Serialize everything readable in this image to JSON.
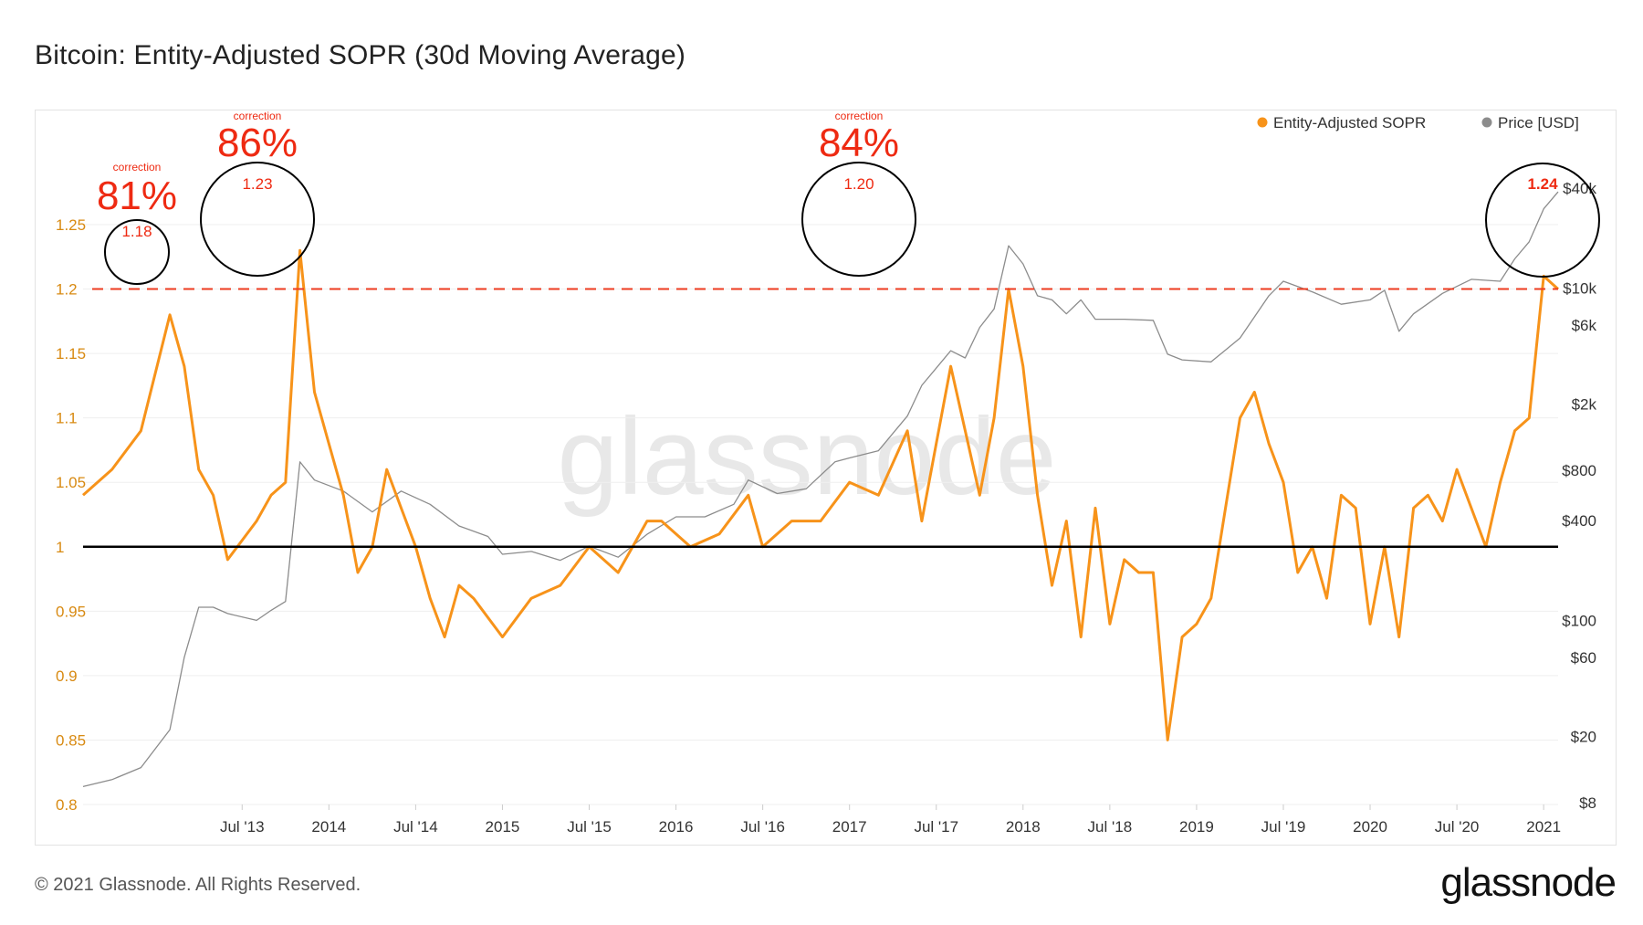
{
  "title": "Bitcoin: Entity-Adjusted SOPR (30d Moving Average)",
  "footer": "© 2021 Glassnode. All Rights Reserved.",
  "brand": "glassnode",
  "watermark": "glassnode",
  "colors": {
    "sopr": "#f7931a",
    "price": "#8c8c8c",
    "threshold": "#ee3b1f",
    "baseline": "#000000",
    "annotation": "#ee2a12"
  },
  "chart_data": {
    "type": "line",
    "x_start": "2012-08",
    "x_end": "2021-02",
    "xtick_labels": [
      "Jul '13",
      "2014",
      "Jul '14",
      "2015",
      "Jul '15",
      "2016",
      "Jul '16",
      "2017",
      "Jul '17",
      "2018",
      "Jul '18",
      "2019",
      "Jul '19",
      "2020",
      "Jul '20",
      "2021"
    ],
    "ylim_left": [
      0.8,
      1.25
    ],
    "ytick_left": [
      "0.8",
      "0.85",
      "0.9",
      "0.95",
      "1",
      "1.05",
      "1.1",
      "1.15",
      "1.2",
      "1.25"
    ],
    "ytick_right": [
      "$8",
      "$20",
      "$60",
      "$100",
      "$400",
      "$800",
      "$2k",
      "$6k",
      "$10k",
      "$40k"
    ],
    "baseline": 1,
    "threshold": 1.2,
    "legend": [
      "Entity-Adjusted SOPR",
      "Price [USD]"
    ],
    "legend_position": "top-right",
    "series": [
      {
        "name": "Entity-Adjusted SOPR",
        "x": [
          "2012-08",
          "2012-10",
          "2012-12",
          "2013-02",
          "2013-03",
          "2013-04",
          "2013-05",
          "2013-06",
          "2013-08",
          "2013-09",
          "2013-10",
          "2013-11",
          "2013-12",
          "2014-01",
          "2014-02",
          "2014-03",
          "2014-04",
          "2014-05",
          "2014-06",
          "2014-07",
          "2014-08",
          "2014-09",
          "2014-10",
          "2014-11",
          "2015-01",
          "2015-03",
          "2015-05",
          "2015-07",
          "2015-09",
          "2015-11",
          "2015-12",
          "2016-02",
          "2016-04",
          "2016-06",
          "2016-07",
          "2016-09",
          "2016-11",
          "2017-01",
          "2017-03",
          "2017-05",
          "2017-06",
          "2017-07",
          "2017-08",
          "2017-10",
          "2017-11",
          "2017-12",
          "2018-01",
          "2018-02",
          "2018-03",
          "2018-04",
          "2018-05",
          "2018-06",
          "2018-07",
          "2018-08",
          "2018-09",
          "2018-10",
          "2018-11",
          "2018-12",
          "2019-01",
          "2019-02",
          "2019-03",
          "2019-04",
          "2019-05",
          "2019-06",
          "2019-07",
          "2019-08",
          "2019-09",
          "2019-10",
          "2019-11",
          "2019-12",
          "2020-01",
          "2020-02",
          "2020-03",
          "2020-04",
          "2020-05",
          "2020-06",
          "2020-07",
          "2020-08",
          "2020-09",
          "2020-10",
          "2020-11",
          "2020-12",
          "2021-01",
          "2021-02"
        ],
        "values": [
          1.04,
          1.06,
          1.09,
          1.18,
          1.14,
          1.06,
          1.04,
          0.99,
          1.02,
          1.04,
          1.05,
          1.23,
          1.12,
          1.08,
          1.04,
          0.98,
          1.0,
          1.06,
          1.03,
          1.0,
          0.96,
          0.93,
          0.97,
          0.96,
          0.93,
          0.96,
          0.97,
          1.0,
          0.98,
          1.02,
          1.02,
          1.0,
          1.01,
          1.04,
          1.0,
          1.02,
          1.02,
          1.05,
          1.04,
          1.09,
          1.02,
          1.08,
          1.14,
          1.04,
          1.1,
          1.2,
          1.14,
          1.04,
          0.97,
          1.02,
          0.93,
          1.03,
          0.94,
          0.99,
          0.98,
          0.98,
          0.85,
          0.93,
          0.94,
          0.96,
          1.03,
          1.1,
          1.12,
          1.08,
          1.05,
          0.98,
          1.0,
          0.96,
          1.04,
          1.03,
          0.94,
          1.0,
          0.93,
          1.03,
          1.04,
          1.02,
          1.06,
          1.03,
          1.0,
          1.05,
          1.09,
          1.1,
          1.21,
          1.2
        ]
      },
      {
        "name": "Price [USD]",
        "x": [
          "2012-08",
          "2012-10",
          "2012-12",
          "2013-02",
          "2013-03",
          "2013-04",
          "2013-05",
          "2013-06",
          "2013-08",
          "2013-09",
          "2013-10",
          "2013-11",
          "2013-12",
          "2014-02",
          "2014-04",
          "2014-06",
          "2014-08",
          "2014-10",
          "2014-12",
          "2015-01",
          "2015-03",
          "2015-05",
          "2015-07",
          "2015-09",
          "2015-11",
          "2016-01",
          "2016-03",
          "2016-05",
          "2016-06",
          "2016-08",
          "2016-10",
          "2016-12",
          "2017-01",
          "2017-03",
          "2017-05",
          "2017-06",
          "2017-08",
          "2017-09",
          "2017-10",
          "2017-11",
          "2017-12",
          "2018-01",
          "2018-02",
          "2018-03",
          "2018-04",
          "2018-05",
          "2018-06",
          "2018-08",
          "2018-10",
          "2018-11",
          "2018-12",
          "2019-02",
          "2019-04",
          "2019-06",
          "2019-07",
          "2019-09",
          "2019-11",
          "2020-01",
          "2020-02",
          "2020-03",
          "2020-04",
          "2020-06",
          "2020-08",
          "2020-10",
          "2020-11",
          "2020-12",
          "2021-01",
          "2021-02"
        ],
        "values": [
          10,
          11,
          13,
          22,
          60,
          120,
          120,
          110,
          100,
          115,
          130,
          900,
          700,
          600,
          450,
          600,
          500,
          370,
          320,
          250,
          260,
          230,
          280,
          240,
          330,
          420,
          420,
          500,
          700,
          580,
          620,
          900,
          950,
          1050,
          1700,
          2600,
          4200,
          3800,
          5800,
          7500,
          18000,
          14000,
          9000,
          8500,
          7000,
          8500,
          6500,
          6500,
          6400,
          4000,
          3700,
          3600,
          5000,
          9000,
          11000,
          9500,
          8000,
          8500,
          9700,
          5500,
          7000,
          9300,
          11300,
          11000,
          15000,
          19000,
          30000,
          38000
        ]
      }
    ],
    "annotations": [
      {
        "label": "correction",
        "percent": "81%",
        "peak": "1.18"
      },
      {
        "label": "correction",
        "percent": "86%",
        "peak": "1.23"
      },
      {
        "label": "correction",
        "percent": "84%",
        "peak": "1.20"
      },
      {
        "label": "",
        "percent": "",
        "peak": "1.24"
      }
    ]
  }
}
